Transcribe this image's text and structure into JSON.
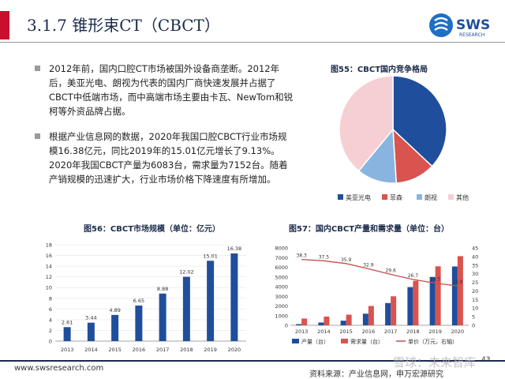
{
  "header": {
    "title": "3.1.7 锥形束CT（CBCT）",
    "logo_text": "SWS",
    "logo_sub": "RESEARCH",
    "accent": "#c8102e",
    "navy": "#1b2a4a"
  },
  "bullets": [
    "2012年前，国内口腔CT市场被国外设备商垄断。2012年后，美亚光电、朗视为代表的国内厂商快速发展并占据了CBCT中低端市场，而中高端市场主要由卡瓦、NewTom和锐柯等外资品牌占据。",
    "根据产业信息网的数据，2020年我国口腔CBCT行业市场规模16.38亿元，同比2019年的15.01亿元增长了9.13%。2020年我国CBCT产量为6083台，需求量为7152台。随着产销规模的迅速扩大，行业市场价格下降速度有所增加。"
  ],
  "chart_data": [
    {
      "type": "pie",
      "title": "图55：CBCT国内竞争格局",
      "labels": [
        "美亚光电",
        "菲森",
        "朗视",
        "其他"
      ],
      "values": [
        37,
        12,
        12,
        39
      ],
      "colors": [
        "#1f4e9c",
        "#d9534f",
        "#8ab4e0",
        "#f5cfd4"
      ]
    },
    {
      "type": "bar",
      "title": "图56：CBCT市场规模（单位：亿元）",
      "categories": [
        "2013",
        "2014",
        "2015",
        "2016",
        "2017",
        "2018",
        "2019",
        "2020"
      ],
      "values": [
        2.61,
        3.44,
        4.89,
        6.65,
        8.88,
        12.02,
        15.01,
        16.38
      ],
      "value_labels": [
        "2.61",
        "3.44",
        "4.89",
        "6.65",
        "8.88",
        "12.02",
        "15.01",
        "16.38"
      ],
      "ylim": [
        0,
        18
      ],
      "yticks": [
        "0",
        "2",
        "4",
        "6",
        "8",
        "10",
        "12",
        "14",
        "16",
        "18"
      ],
      "color": "#1f4e9c"
    },
    {
      "type": "bar",
      "title": "图57：国内CBCT产量和需求量（单位：台）",
      "categories": [
        "2013",
        "2014",
        "2015",
        "2016",
        "2017",
        "2018",
        "2019",
        "2020"
      ],
      "series": [
        {
          "name": "产量（台）",
          "values": [
            120,
            290,
            480,
            1200,
            2300,
            3950,
            5000,
            6083
          ],
          "color": "#1f4e9c"
        },
        {
          "name": "需求量（台）",
          "values": [
            700,
            900,
            1100,
            2000,
            3000,
            4600,
            6100,
            7152
          ],
          "color": "#d9534f"
        },
        {
          "name": "单价（万元，右轴）",
          "values": [
            38.3,
            37.5,
            35.9,
            32.9,
            29.6,
            26.7,
            24.5,
            22.9
          ],
          "color": "#c0504d",
          "axis": "right"
        }
      ],
      "line_labels": [
        "38.3",
        "37.5",
        "35.9",
        "32.9",
        "29.6",
        "26.7",
        "24.5",
        "22.9"
      ],
      "ylim": [
        0,
        8000
      ],
      "yticks": [
        "0",
        "1000",
        "2000",
        "3000",
        "4000",
        "5000",
        "6000",
        "7000",
        "8000"
      ],
      "y2lim": [
        0,
        45
      ],
      "y2ticks": [
        "0",
        "5",
        "10",
        "15",
        "20",
        "25",
        "30",
        "35",
        "40",
        "45"
      ]
    }
  ],
  "footer": {
    "url": "www.swsresearch.com",
    "source": "资料来源：产业信息网，申万宏源研究",
    "watermark": "雪球：未来智库",
    "page": "43"
  }
}
